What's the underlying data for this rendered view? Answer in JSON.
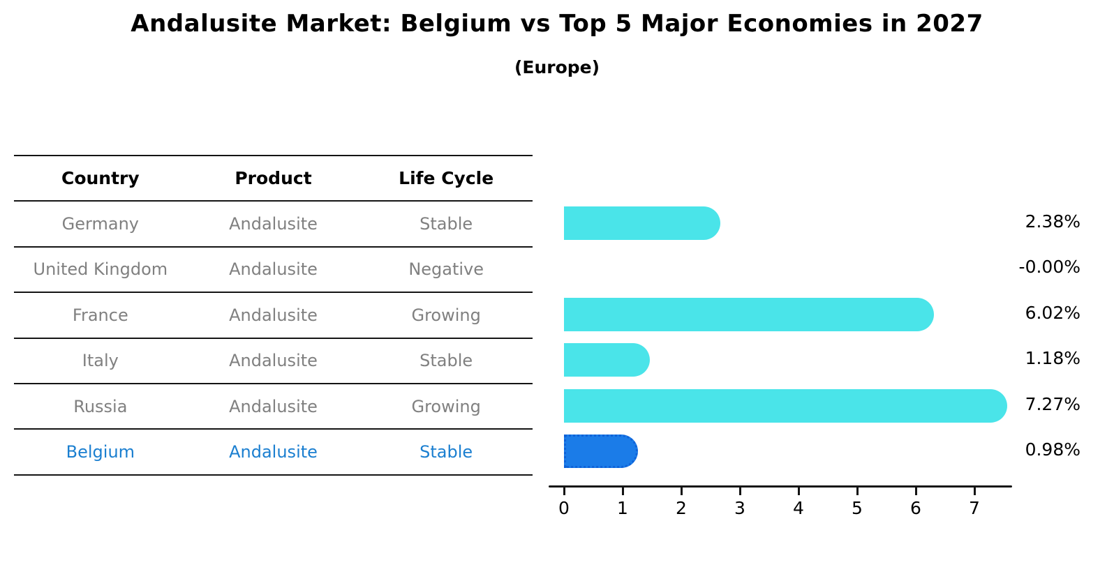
{
  "title": "Andalusite Market: Belgium vs Top 5 Major Economies in 2027",
  "subtitle": "(Europe)",
  "colors": {
    "bar_default": "#4ae4e9",
    "bar_highlight": "#1b7ce8",
    "highlight_text": "#1b7fd0",
    "table_text": "#808080",
    "header_text": "#000000",
    "axis": "#141414"
  },
  "table": {
    "headers": [
      "Country",
      "Product",
      "Life Cycle"
    ],
    "rows": [
      {
        "country": "Germany",
        "product": "Andalusite",
        "life_cycle": "Stable",
        "highlight": false
      },
      {
        "country": "United Kingdom",
        "product": "Andalusite",
        "life_cycle": "Negative",
        "highlight": false
      },
      {
        "country": "France",
        "product": "Andalusite",
        "life_cycle": "Growing",
        "highlight": false
      },
      {
        "country": "Italy",
        "product": "Andalusite",
        "life_cycle": "Stable",
        "highlight": false
      },
      {
        "country": "Russia",
        "product": "Andalusite",
        "life_cycle": "Growing",
        "highlight": false
      },
      {
        "country": "Belgium",
        "product": "Andalusite",
        "life_cycle": "Stable",
        "highlight": true
      }
    ]
  },
  "chart_data": {
    "type": "bar",
    "orientation": "horizontal",
    "title": "Andalusite Market: Belgium vs Top 5 Major Economies in 2027",
    "subtitle": "(Europe)",
    "categories": [
      "Germany",
      "United Kingdom",
      "France",
      "Italy",
      "Russia",
      "Belgium"
    ],
    "values": [
      2.38,
      -0.0,
      6.02,
      1.18,
      7.27,
      0.98
    ],
    "value_labels": [
      "2.38%",
      "-0.00%",
      "6.02%",
      "1.18%",
      "7.27%",
      "0.98%"
    ],
    "highlight_index": 5,
    "xticks": [
      0,
      1,
      2,
      3,
      4,
      5,
      6,
      7
    ],
    "xlim": [
      0,
      7.6
    ],
    "grid": false,
    "legend": false
  }
}
